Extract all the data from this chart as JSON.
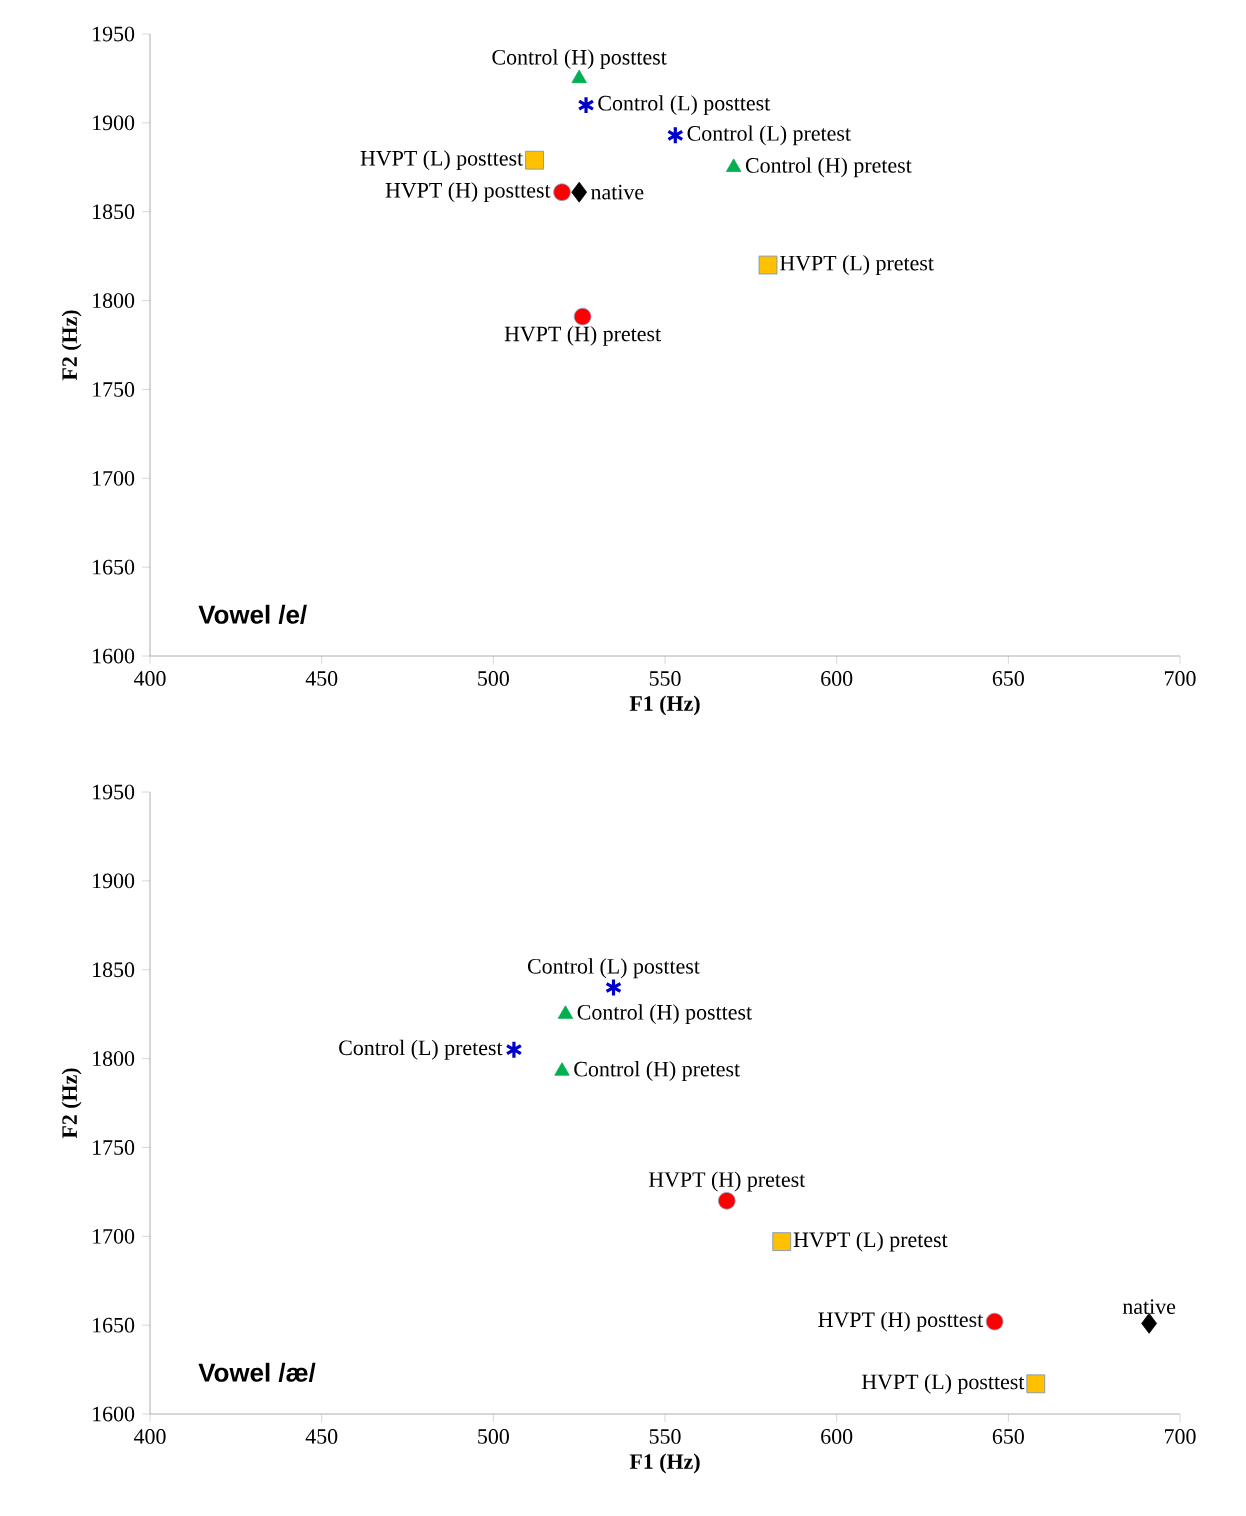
{
  "chart_data": [
    {
      "type": "scatter",
      "xlabel": "F1 (Hz)",
      "ylabel": "F2 (Hz)",
      "xlim": [
        400,
        700
      ],
      "ylim": [
        1600,
        1950
      ],
      "xticks": [
        400,
        450,
        500,
        550,
        600,
        650,
        700
      ],
      "yticks": [
        1600,
        1650,
        1700,
        1750,
        1800,
        1850,
        1900,
        1950
      ],
      "grid": false,
      "series": [
        {
          "marker": "triangle",
          "color": "#00b050",
          "x": [
            525,
            570
          ],
          "values": [
            1925,
            1875
          ]
        },
        {
          "marker": "cross",
          "color": "#0000cc",
          "x": [
            527,
            553
          ],
          "values": [
            1910,
            1893
          ]
        },
        {
          "marker": "square",
          "color": "#ffc000",
          "x": [
            512,
            580
          ],
          "values": [
            1879,
            1820
          ]
        },
        {
          "marker": "circle",
          "color": "#ff0000",
          "x": [
            520,
            526
          ],
          "values": [
            1861,
            1791
          ]
        },
        {
          "marker": "diamond",
          "color": "#000000",
          "x": [
            525
          ],
          "values": [
            1861
          ]
        }
      ],
      "annotations": [
        {
          "text": "Control (H) posttest",
          "x": 525,
          "y": 1925
        },
        {
          "text": "Control (L) posttest",
          "x": 527,
          "y": 1910
        },
        {
          "text": "Control (L) pretest",
          "x": 553,
          "y": 1893
        },
        {
          "text": "Control (H) pretest",
          "x": 570,
          "y": 1875
        },
        {
          "text": "HVPT (L) posttest",
          "x": 512,
          "y": 1879
        },
        {
          "text": "HVPT (H) posttest",
          "x": 520,
          "y": 1861
        },
        {
          "text": "native",
          "x": 525,
          "y": 1861
        },
        {
          "text": "HVPT (L) pretest",
          "x": 580,
          "y": 1820
        },
        {
          "text": "HVPT (H) pretest",
          "x": 526,
          "y": 1791
        },
        "Vowel /e/"
      ]
    },
    {
      "type": "scatter",
      "xlabel": "F1 (Hz)",
      "ylabel": "F2 (Hz)",
      "xlim": [
        400,
        700
      ],
      "ylim": [
        1600,
        1950
      ],
      "xticks": [
        400,
        450,
        500,
        550,
        600,
        650,
        700
      ],
      "yticks": [
        1600,
        1650,
        1700,
        1750,
        1800,
        1850,
        1900,
        1950
      ],
      "grid": false,
      "series": [
        {
          "marker": "triangle",
          "color": "#00b050",
          "x": [
            521,
            520
          ],
          "values": [
            1825,
            1793
          ]
        },
        {
          "marker": "cross",
          "color": "#0000cc",
          "x": [
            535,
            506
          ],
          "values": [
            1840,
            1805
          ]
        },
        {
          "marker": "square",
          "color": "#ffc000",
          "x": [
            584,
            658
          ],
          "values": [
            1697,
            1617
          ]
        },
        {
          "marker": "circle",
          "color": "#ff0000",
          "x": [
            568,
            646
          ],
          "values": [
            1720,
            1652
          ]
        },
        {
          "marker": "diamond",
          "color": "#000000",
          "x": [
            691
          ],
          "values": [
            1651
          ]
        }
      ],
      "annotations": [
        {
          "text": "Control (L) posttest",
          "x": 535,
          "y": 1840
        },
        {
          "text": "Control (H) posttest",
          "x": 521,
          "y": 1825
        },
        {
          "text": "Control (L) pretest",
          "x": 506,
          "y": 1805
        },
        {
          "text": "Control (H) pretest",
          "x": 520,
          "y": 1793
        },
        {
          "text": "HVPT (H) pretest",
          "x": 568,
          "y": 1720
        },
        {
          "text": "HVPT (L) pretest",
          "x": 584,
          "y": 1697
        },
        {
          "text": "HVPT (H) posttest",
          "x": 646,
          "y": 1652
        },
        {
          "text": "native",
          "x": 691,
          "y": 1651
        },
        {
          "text": "HVPT (L) posttest",
          "x": 658,
          "y": 1617
        },
        "Vowel /æ/"
      ]
    }
  ]
}
